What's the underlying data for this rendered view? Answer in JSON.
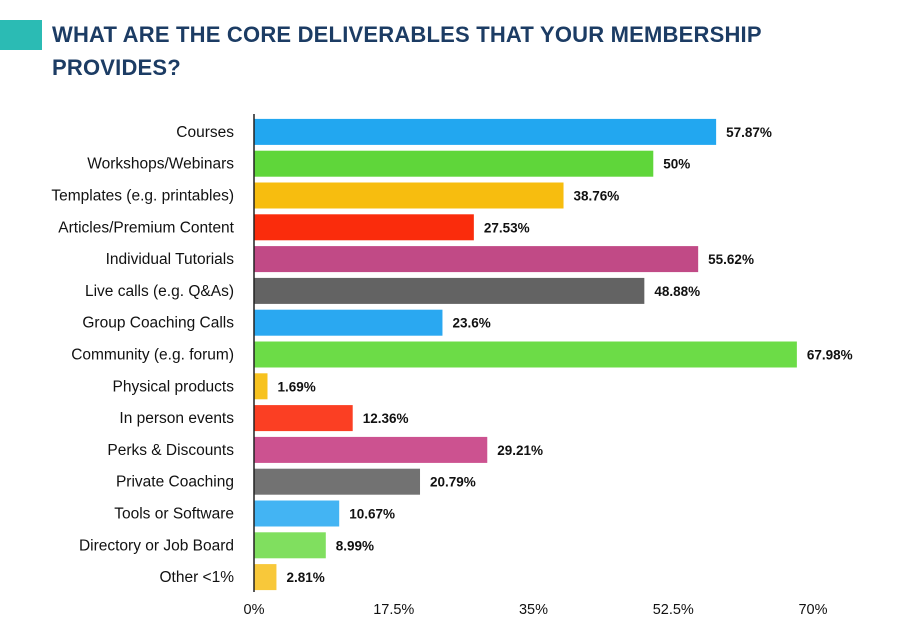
{
  "header": {
    "title_line1": "WHAT ARE THE CORE DELIVERABLES THAT YOUR MEMBERSHIP",
    "title_line2": "PROVIDES?"
  },
  "colors": {
    "accent": "#2bbbb4",
    "title": "#1c3c64"
  },
  "chart_data": {
    "type": "bar",
    "orientation": "horizontal",
    "title": "WHAT ARE THE CORE DELIVERABLES THAT YOUR MEMBERSHIP PROVIDES?",
    "xlabel": "",
    "ylabel": "",
    "xlim": [
      0,
      70
    ],
    "xticks": [
      {
        "value": 0,
        "label": "0%"
      },
      {
        "value": 17.5,
        "label": "17.5%"
      },
      {
        "value": 35,
        "label": "35%"
      },
      {
        "value": 52.5,
        "label": "52.5%"
      },
      {
        "value": 70,
        "label": "70%"
      }
    ],
    "grid": false,
    "bars": [
      {
        "category": "Courses",
        "value": 57.87,
        "label": "57.87%",
        "color": "#22a7f0"
      },
      {
        "category": "Workshops/Webinars",
        "value": 50,
        "label": "50%",
        "color": "#5fd63a"
      },
      {
        "category": "Templates (e.g. printables)",
        "value": 38.76,
        "label": "38.76%",
        "color": "#f7bd0f"
      },
      {
        "category": "Articles/Premium Content",
        "value": 27.53,
        "label": "27.53%",
        "color": "#fa2c0c"
      },
      {
        "category": "Individual Tutorials",
        "value": 55.62,
        "label": "55.62%",
        "color": "#c14a86"
      },
      {
        "category": "Live calls (e.g. Q&As)",
        "value": 48.88,
        "label": "48.88%",
        "color": "#636363"
      },
      {
        "category": "Group Coaching Calls",
        "value": 23.6,
        "label": "23.6%",
        "color": "#2aa8f1"
      },
      {
        "category": "Community (e.g. forum)",
        "value": 67.98,
        "label": "67.98%",
        "color": "#6cdc47"
      },
      {
        "category": "Physical products",
        "value": 1.69,
        "label": "1.69%",
        "color": "#f7c21f"
      },
      {
        "category": "In person events",
        "value": 12.36,
        "label": "12.36%",
        "color": "#fb3f23"
      },
      {
        "category": "Perks & Discounts",
        "value": 29.21,
        "label": "29.21%",
        "color": "#cc5290"
      },
      {
        "category": "Private Coaching",
        "value": 20.79,
        "label": "20.79%",
        "color": "#727272"
      },
      {
        "category": "Tools or Software",
        "value": 10.67,
        "label": "10.67%",
        "color": "#43b4f3"
      },
      {
        "category": "Directory or Job Board",
        "value": 8.99,
        "label": "8.99%",
        "color": "#80df5f"
      },
      {
        "category": "Other <1%",
        "value": 2.81,
        "label": "2.81%",
        "color": "#f8c83a"
      }
    ]
  }
}
